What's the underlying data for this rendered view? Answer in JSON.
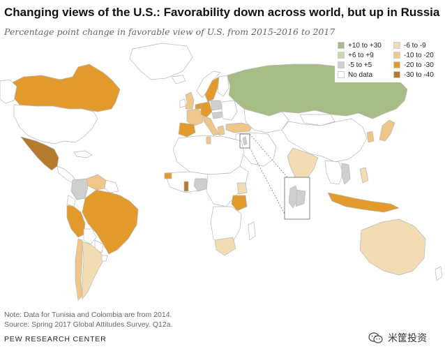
{
  "title": "Changing views of the U.S.: Favorability down across world, but up in Russia",
  "subtitle": "Percentage point change in favorable view of U.S. from 2015-2016 to 2017",
  "legend": {
    "items": [
      {
        "label": "+10 to +30",
        "color": "#a7bd86"
      },
      {
        "label": "+6 to +9",
        "color": "#c9d9a9"
      },
      {
        "label": "-5 to +5",
        "color": "#cfcfcf"
      },
      {
        "label": "No data",
        "color": "#ffffff"
      },
      {
        "label": "-6 to -9",
        "color": "#f2dcb3"
      },
      {
        "label": "-10 to -20",
        "color": "#efc78b"
      },
      {
        "label": "-20 to -30",
        "color": "#e39a2c"
      },
      {
        "label": "-30 to -40",
        "color": "#b47a2d"
      }
    ]
  },
  "footer": {
    "note": "Note: Data for Tunisia and Colombia are from 2014.",
    "source": "Source: Spring 2017 Global Attitudes Survey. Q12a.",
    "org": "PEW RESEARCH CENTER"
  },
  "watermark": {
    "brand": "米筐投资"
  },
  "colors": {
    "border": "#b8b8b8",
    "no_data": "#ffffff"
  }
}
